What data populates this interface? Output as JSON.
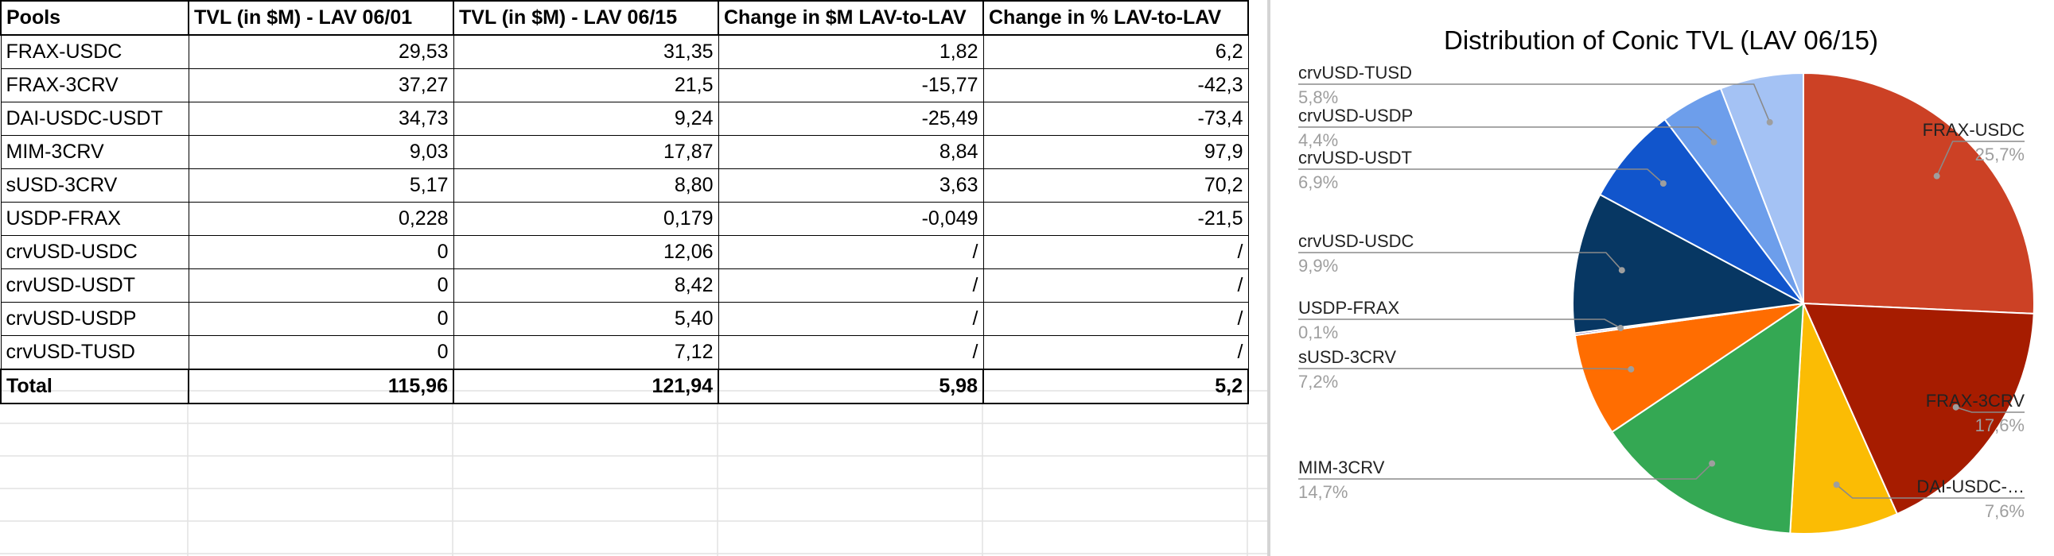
{
  "table": {
    "headers": [
      "Pools",
      "TVL (in $M) - LAV 06/01",
      "TVL (in $M) - LAV 06/15",
      "Change in $M LAV-to-LAV",
      "Change in % LAV-to-LAV"
    ],
    "rows": [
      [
        "FRAX-USDC",
        "29,53",
        "31,35",
        "1,82",
        "6,2"
      ],
      [
        "FRAX-3CRV",
        "37,27",
        "21,5",
        "-15,77",
        "-42,3"
      ],
      [
        "DAI-USDC-USDT",
        "34,73",
        "9,24",
        "-25,49",
        "-73,4"
      ],
      [
        "MIM-3CRV",
        "9,03",
        "17,87",
        "8,84",
        "97,9"
      ],
      [
        "sUSD-3CRV",
        "5,17",
        "8,80",
        "3,63",
        "70,2"
      ],
      [
        "USDP-FRAX",
        "0,228",
        "0,179",
        "-0,049",
        "-21,5"
      ],
      [
        "crvUSD-USDC",
        "0",
        "12,06",
        "/",
        "/"
      ],
      [
        "crvUSD-USDT",
        "0",
        "8,42",
        "/",
        "/"
      ],
      [
        "crvUSD-USDP",
        "0",
        "5,40",
        "/",
        "/"
      ],
      [
        "crvUSD-TUSD",
        "0",
        "7,12",
        "/",
        "/"
      ]
    ],
    "total": [
      "Total",
      "115,96",
      "121,94",
      "5,98",
      "5,2"
    ]
  },
  "chart_data": {
    "type": "pie",
    "title": "Distribution of Conic TVL (LAV 06/15)",
    "slices": [
      {
        "label": "FRAX-USDC",
        "value": 31.35,
        "percent_label": "25,7%",
        "color": "#cc4125"
      },
      {
        "label": "FRAX-3CRV",
        "value": 21.5,
        "percent_label": "17,6%",
        "color": "#a61c00"
      },
      {
        "label": "DAI-USDC-…",
        "value": 9.24,
        "percent_label": "7,6%",
        "color": "#fbbc04"
      },
      {
        "label": "MIM-3CRV",
        "value": 17.87,
        "percent_label": "14,7%",
        "color": "#34a853"
      },
      {
        "label": "sUSD-3CRV",
        "value": 8.8,
        "percent_label": "7,2%",
        "color": "#ff6d01"
      },
      {
        "label": "USDP-FRAX",
        "value": 0.179,
        "percent_label": "0,1%",
        "color": "#674ea7"
      },
      {
        "label": "crvUSD-USDC",
        "value": 12.06,
        "percent_label": "9,9%",
        "color": "#073763"
      },
      {
        "label": "crvUSD-USDT",
        "value": 8.42,
        "percent_label": "6,9%",
        "color": "#1155cc"
      },
      {
        "label": "crvUSD-USDP",
        "value": 5.4,
        "percent_label": "4,4%",
        "color": "#6d9eeb"
      },
      {
        "label": "crvUSD-TUSD",
        "value": 7.12,
        "percent_label": "5,8%",
        "color": "#a4c2f4"
      }
    ],
    "legend": "none"
  }
}
